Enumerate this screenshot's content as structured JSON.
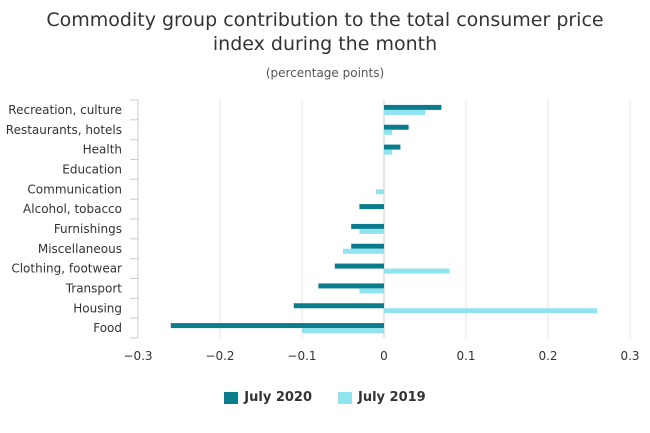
{
  "chart_data": {
    "type": "bar",
    "orientation": "horizontal",
    "title_lines": [
      "Commodity group contribution to the total consumer price",
      "index during the month"
    ],
    "subtitle": "(percentage points)",
    "categories": [
      "Recreation, culture",
      "Restaurants, hotels",
      "Health",
      "Education",
      "Communication",
      "Alcohol, tobacco",
      "Furnishings",
      "Miscellaneous",
      "Clothing, footwear",
      "Transport",
      "Housing",
      "Food"
    ],
    "series": [
      {
        "name": "July 2020",
        "color": "#0a7d8c",
        "values": [
          0.07,
          0.03,
          0.02,
          0.0,
          0.0,
          -0.03,
          -0.04,
          -0.04,
          -0.06,
          -0.08,
          -0.11,
          -0.26
        ]
      },
      {
        "name": "July 2019",
        "color": "#90e4f0",
        "values": [
          0.05,
          0.01,
          0.01,
          0.0,
          -0.01,
          0.0,
          -0.03,
          -0.05,
          0.08,
          -0.03,
          0.26,
          -0.1
        ]
      }
    ],
    "xlim": [
      -0.3,
      0.3
    ],
    "xticks": [
      -0.3,
      -0.2,
      -0.1,
      0,
      0.1,
      0.2,
      0.3
    ],
    "xtick_labels": [
      "−0.3",
      "−0.2",
      "−0.1",
      "0",
      "0.1",
      "0.2",
      "0.3"
    ],
    "grid": true,
    "legend_position": "bottom-center"
  }
}
